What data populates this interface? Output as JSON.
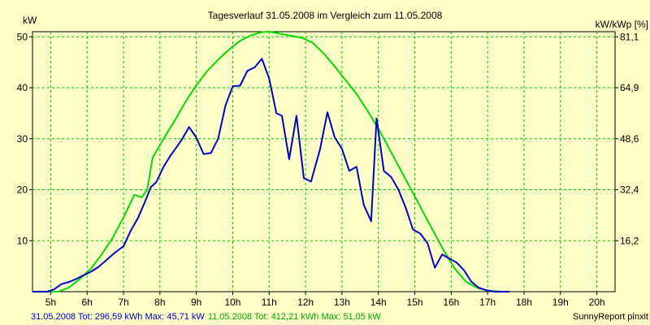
{
  "chart_data": {
    "type": "line",
    "title": "Tagesverlauf 31.05.2008 im Vergleich zum 11.05.2008",
    "ylabel_left": "kW",
    "ylabel_right": "kW/kWp [%]",
    "ylim": [
      0,
      51
    ],
    "y_ticks": [
      10,
      20,
      30,
      40,
      50
    ],
    "y_right_ticks": [
      "16,2",
      "32,4",
      "48,6",
      "64,9",
      "81,1"
    ],
    "xlim": [
      4.5,
      20.5
    ],
    "x_ticks": [
      "5h",
      "6h",
      "7h",
      "8h",
      "9h",
      "10h",
      "11h",
      "12h",
      "13h",
      "14h",
      "15h",
      "16h",
      "17h",
      "18h",
      "19h",
      "20h"
    ],
    "grid": true,
    "series": [
      {
        "name": "31.05.2008",
        "color": "#0000cc",
        "points": [
          [
            4.5,
            0
          ],
          [
            4.9,
            0
          ],
          [
            5.1,
            0.5
          ],
          [
            5.3,
            1.5
          ],
          [
            5.5,
            1.9
          ],
          [
            5.7,
            2.5
          ],
          [
            5.9,
            3.2
          ],
          [
            6.1,
            3.9
          ],
          [
            6.3,
            4.8
          ],
          [
            6.5,
            6.0
          ],
          [
            6.7,
            7.3
          ],
          [
            6.9,
            8.4
          ],
          [
            7.0,
            8.9
          ],
          [
            7.2,
            12.0
          ],
          [
            7.4,
            14.5
          ],
          [
            7.6,
            17.8
          ],
          [
            7.75,
            20.5
          ],
          [
            7.9,
            21.5
          ],
          [
            8.1,
            24.5
          ],
          [
            8.3,
            26.8
          ],
          [
            8.5,
            28.8
          ],
          [
            8.6,
            29.8
          ],
          [
            8.8,
            32.3
          ],
          [
            9.0,
            30.2
          ],
          [
            9.2,
            27.0
          ],
          [
            9.4,
            27.2
          ],
          [
            9.6,
            30.0
          ],
          [
            9.8,
            36.5
          ],
          [
            10.0,
            40.3
          ],
          [
            10.2,
            40.4
          ],
          [
            10.4,
            43.3
          ],
          [
            10.6,
            44.0
          ],
          [
            10.8,
            45.7
          ],
          [
            11.0,
            41.8
          ],
          [
            11.2,
            35.0
          ],
          [
            11.35,
            34.5
          ],
          [
            11.55,
            26.0
          ],
          [
            11.75,
            34.5
          ],
          [
            11.95,
            22.3
          ],
          [
            12.15,
            21.6
          ],
          [
            12.4,
            28.0
          ],
          [
            12.6,
            35.2
          ],
          [
            12.8,
            30.3
          ],
          [
            13.0,
            28.0
          ],
          [
            13.2,
            23.7
          ],
          [
            13.4,
            24.5
          ],
          [
            13.6,
            17.0
          ],
          [
            13.8,
            13.8
          ],
          [
            13.95,
            34.0
          ],
          [
            14.15,
            23.7
          ],
          [
            14.35,
            22.5
          ],
          [
            14.55,
            20.0
          ],
          [
            14.75,
            16.5
          ],
          [
            14.95,
            12.2
          ],
          [
            15.15,
            11.4
          ],
          [
            15.35,
            9.5
          ],
          [
            15.55,
            4.7
          ],
          [
            15.75,
            7.3
          ],
          [
            15.95,
            6.5
          ],
          [
            16.15,
            5.7
          ],
          [
            16.35,
            4.2
          ],
          [
            16.55,
            2.0
          ],
          [
            16.75,
            0.8
          ],
          [
            16.95,
            0.3
          ],
          [
            17.2,
            0
          ],
          [
            17.6,
            0
          ]
        ]
      },
      {
        "name": "11.05.2008",
        "color": "#00dd00",
        "points": [
          [
            4.5,
            0
          ],
          [
            5.2,
            0
          ],
          [
            5.5,
            0.8
          ],
          [
            5.8,
            2.5
          ],
          [
            6.1,
            4.5
          ],
          [
            6.4,
            7.3
          ],
          [
            6.7,
            10.5
          ],
          [
            7.0,
            14.6
          ],
          [
            7.3,
            19.0
          ],
          [
            7.5,
            18.5
          ],
          [
            7.65,
            20.0
          ],
          [
            7.8,
            26.3
          ],
          [
            8.1,
            30.0
          ],
          [
            8.4,
            33.5
          ],
          [
            8.7,
            37.2
          ],
          [
            9.0,
            40.5
          ],
          [
            9.3,
            43.3
          ],
          [
            9.6,
            45.5
          ],
          [
            9.9,
            47.5
          ],
          [
            10.2,
            49.2
          ],
          [
            10.5,
            50.3
          ],
          [
            10.8,
            50.9
          ],
          [
            11.0,
            51.0
          ],
          [
            11.3,
            50.6
          ],
          [
            11.6,
            50.2
          ],
          [
            11.9,
            49.8
          ],
          [
            12.2,
            48.8
          ],
          [
            12.5,
            46.7
          ],
          [
            12.8,
            44.2
          ],
          [
            13.1,
            41.5
          ],
          [
            13.4,
            38.8
          ],
          [
            13.7,
            35.5
          ],
          [
            14.0,
            32.0
          ],
          [
            14.3,
            28.0
          ],
          [
            14.6,
            24.0
          ],
          [
            14.9,
            20.0
          ],
          [
            15.2,
            16.0
          ],
          [
            15.5,
            12.0
          ],
          [
            15.8,
            8.0
          ],
          [
            16.1,
            4.5
          ],
          [
            16.4,
            2.0
          ],
          [
            16.7,
            0.8
          ],
          [
            17.0,
            0.2
          ],
          [
            17.4,
            0
          ],
          [
            17.6,
            0
          ]
        ]
      }
    ],
    "footer": [
      {
        "text": "31.05.2008 Tot: 296,59 kWh Max: 45,71 kW",
        "color": "#0000cc"
      },
      {
        "text": "11.05.2008 Tot: 412,21 kWh Max: 51,05 kW",
        "color": "#00aa00"
      }
    ],
    "credit": "SunnyReport pinxit"
  }
}
